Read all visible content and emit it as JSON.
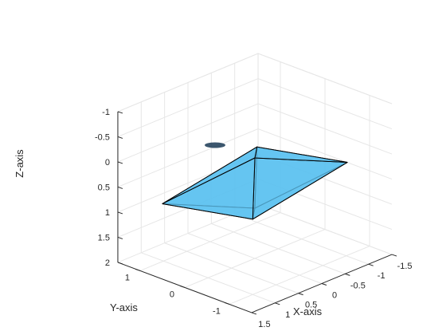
{
  "chart_data": {
    "type": "3d-surface",
    "xlabel": "X-axis",
    "ylabel": "Y-axis",
    "zlabel": "Z-axis",
    "xlim": [
      -1.5,
      1.5
    ],
    "ylim": [
      -1.5,
      1.5
    ],
    "zlim": [
      -1,
      2
    ],
    "z_direction": "reverse",
    "xticks": [
      "1.5",
      "1",
      "0.5",
      "0",
      "-0.5",
      "-1",
      "-1.5"
    ],
    "yticks": [
      "1",
      "0",
      "-1"
    ],
    "zticks": [
      "-1",
      "-0.5",
      "0",
      "0.5",
      "1",
      "1.5",
      "2"
    ],
    "grid": true,
    "face_color": "#5ec2f0",
    "edge_color": "#000000",
    "shape": "octahedron",
    "vertices": {
      "top": [
        0,
        0,
        0
      ],
      "bottom": [
        0,
        0,
        1
      ],
      "front": [
        1,
        -1,
        0.5
      ],
      "right": [
        -1.5,
        -0.5,
        0.5
      ],
      "back": [
        -1,
        1,
        0.5
      ],
      "left": [
        1.5,
        0.5,
        0.5
      ]
    }
  }
}
